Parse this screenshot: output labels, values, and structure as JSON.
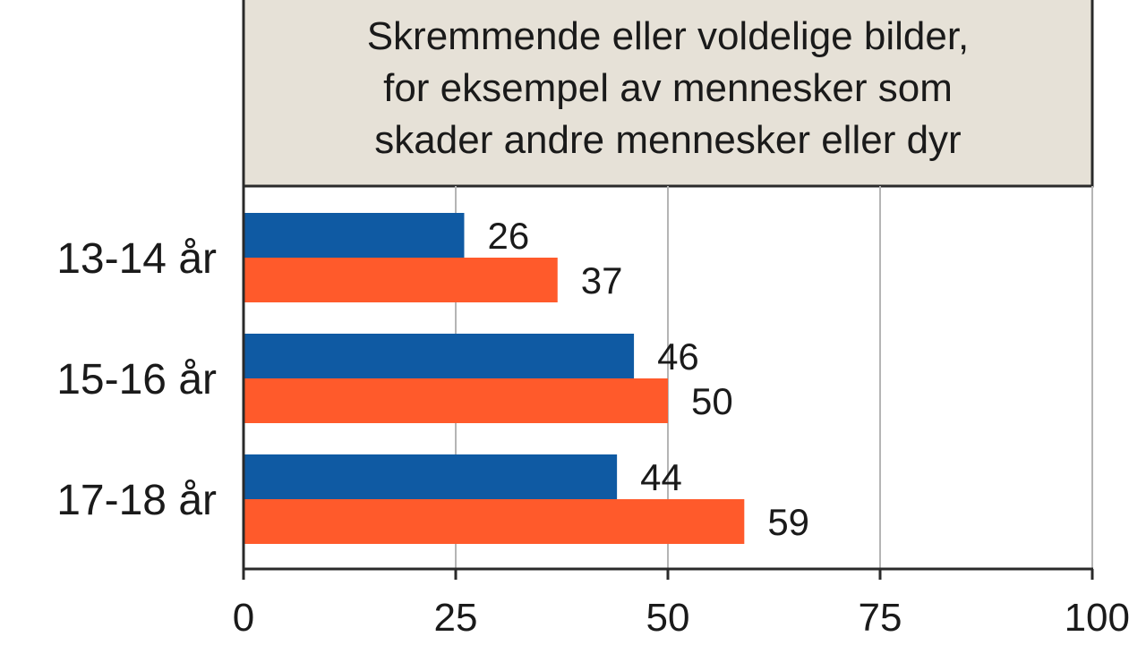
{
  "chart_data": {
    "type": "bar",
    "orientation": "horizontal",
    "title_lines": [
      "Skremmende eller voldelige bilder,",
      "for eksempel av mennesker som",
      "skader andre mennesker eller dyr"
    ],
    "categories": [
      "13-14 år",
      "15-16 år",
      "17-18 år"
    ],
    "series": [
      {
        "values": [
          26,
          46,
          44
        ],
        "color": "#0f5aa3"
      },
      {
        "values": [
          37,
          50,
          59
        ],
        "color": "#ff5a2b"
      }
    ],
    "xlim": [
      0,
      100
    ],
    "xticks": [
      0,
      25,
      50,
      75,
      100
    ],
    "grid": true,
    "title_box_color": "#e6e1d7",
    "legend": "none"
  }
}
